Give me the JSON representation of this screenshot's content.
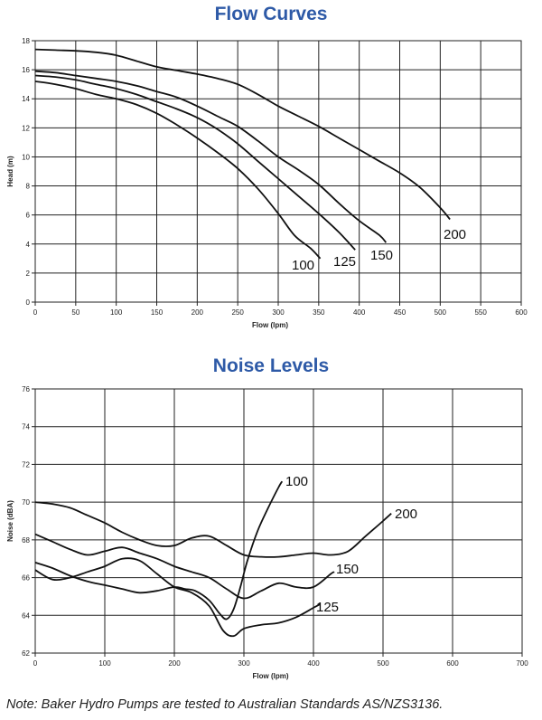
{
  "chart_data": [
    {
      "type": "line",
      "title": "Flow Curves",
      "xlabel": "Flow (lpm)",
      "ylabel": "Head (m)",
      "xlim": [
        0,
        600
      ],
      "ylim": [
        0,
        18
      ],
      "xticks": [
        "0",
        "50",
        "100",
        "150",
        "200",
        "250",
        "300",
        "350",
        "400",
        "450",
        "500",
        "550",
        "600"
      ],
      "yticks": [
        "0",
        "2",
        "4",
        "6",
        "8",
        "10",
        "12",
        "14",
        "16",
        "18"
      ],
      "grid": true,
      "series": [
        {
          "name": "100",
          "x": [
            0,
            25,
            50,
            75,
            100,
            125,
            150,
            175,
            200,
            225,
            250,
            275,
            300,
            320,
            340,
            352
          ],
          "y": [
            15.2,
            15.0,
            14.7,
            14.3,
            14.0,
            13.6,
            13.0,
            12.2,
            11.3,
            10.3,
            9.2,
            7.8,
            6.1,
            4.6,
            3.7,
            3.0
          ]
        },
        {
          "name": "125",
          "x": [
            0,
            25,
            50,
            75,
            100,
            125,
            150,
            175,
            200,
            225,
            250,
            275,
            300,
            325,
            350,
            375,
            395
          ],
          "y": [
            15.6,
            15.5,
            15.3,
            15.0,
            14.7,
            14.3,
            13.8,
            13.3,
            12.7,
            11.9,
            10.9,
            9.7,
            8.5,
            7.3,
            6.1,
            4.8,
            3.6
          ]
        },
        {
          "name": "150",
          "x": [
            0,
            25,
            50,
            75,
            100,
            125,
            150,
            175,
            200,
            225,
            250,
            275,
            300,
            325,
            350,
            375,
            400,
            425,
            433
          ],
          "y": [
            15.9,
            15.8,
            15.6,
            15.4,
            15.2,
            14.9,
            14.5,
            14.1,
            13.5,
            12.8,
            12.1,
            11.1,
            10.0,
            9.1,
            8.1,
            6.8,
            5.6,
            4.6,
            4.1
          ]
        },
        {
          "name": "200",
          "x": [
            0,
            25,
            50,
            75,
            100,
            125,
            150,
            175,
            200,
            225,
            250,
            275,
            300,
            325,
            350,
            375,
            400,
            425,
            450,
            475,
            500,
            512
          ],
          "y": [
            17.4,
            17.35,
            17.3,
            17.2,
            17.0,
            16.6,
            16.2,
            15.95,
            15.7,
            15.4,
            15.0,
            14.3,
            13.5,
            12.8,
            12.1,
            11.3,
            10.5,
            9.7,
            8.9,
            7.9,
            6.5,
            5.7
          ]
        }
      ],
      "series_labels": [
        "100",
        "125",
        "150",
        "200"
      ]
    },
    {
      "type": "line",
      "title": "Noise Levels",
      "xlabel": "Flow (lpm)",
      "ylabel": "Noise (dBA)",
      "xlim": [
        0,
        700
      ],
      "ylim": [
        62,
        76
      ],
      "xticks": [
        "0",
        "100",
        "200",
        "300",
        "400",
        "500",
        "600",
        "700"
      ],
      "yticks": [
        "62",
        "64",
        "66",
        "68",
        "70",
        "72",
        "74",
        "76"
      ],
      "grid": true,
      "series": [
        {
          "name": "100",
          "x": [
            0,
            25,
            50,
            75,
            100,
            125,
            150,
            175,
            200,
            215,
            230,
            250,
            265,
            275,
            285,
            295,
            305,
            320,
            335,
            350,
            355
          ],
          "y": [
            66.8,
            66.5,
            66.1,
            65.8,
            65.6,
            65.4,
            65.2,
            65.3,
            65.5,
            65.4,
            65.3,
            64.8,
            64.1,
            63.8,
            64.3,
            65.5,
            66.9,
            68.5,
            69.7,
            70.8,
            71.1
          ]
        },
        {
          "name": "125",
          "x": [
            0,
            25,
            50,
            75,
            100,
            125,
            150,
            175,
            200,
            225,
            250,
            270,
            285,
            300,
            325,
            350,
            375,
            400,
            410
          ],
          "y": [
            66.4,
            65.9,
            66.0,
            66.3,
            66.6,
            67.0,
            66.9,
            66.2,
            65.5,
            65.2,
            64.5,
            63.2,
            62.9,
            63.3,
            63.5,
            63.6,
            63.9,
            64.4,
            64.6
          ]
        },
        {
          "name": "150",
          "x": [
            0,
            25,
            50,
            75,
            100,
            125,
            150,
            175,
            200,
            225,
            250,
            275,
            300,
            325,
            350,
            375,
            400,
            425,
            430
          ],
          "y": [
            68.3,
            67.9,
            67.5,
            67.2,
            67.4,
            67.6,
            67.3,
            67.0,
            66.6,
            66.3,
            66.0,
            65.4,
            64.9,
            65.3,
            65.7,
            65.5,
            65.5,
            66.2,
            66.3
          ]
        },
        {
          "name": "200",
          "x": [
            0,
            25,
            50,
            75,
            100,
            125,
            150,
            175,
            200,
            225,
            250,
            275,
            300,
            325,
            350,
            375,
            400,
            425,
            450,
            475,
            500,
            512
          ],
          "y": [
            70.0,
            69.9,
            69.7,
            69.3,
            68.9,
            68.4,
            68.0,
            67.7,
            67.7,
            68.1,
            68.2,
            67.7,
            67.2,
            67.1,
            67.1,
            67.2,
            67.3,
            67.2,
            67.4,
            68.2,
            69.0,
            69.4
          ]
        }
      ],
      "series_labels": [
        "100",
        "125",
        "150",
        "200"
      ]
    }
  ],
  "note": "Note: Baker Hydro Pumps are tested to Australian Standards AS/NZS3136."
}
